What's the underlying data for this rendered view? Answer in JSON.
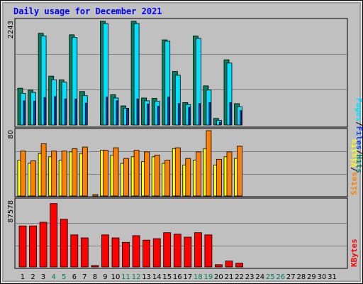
{
  "title": "Daily usage for December 2021",
  "colors": {
    "background": "#c0c0c0",
    "hits": "#00805c",
    "files": "#00e0ff",
    "pages": "#0040ff",
    "visits": "#ffff00",
    "sites": "#ff8000",
    "kbytes": "#ff0000",
    "title": "#0000ff",
    "weekend_label": "#00805c",
    "weekday_label": "#000000"
  },
  "chart_data": [
    {
      "type": "bar",
      "panel": "hits-files-pages",
      "ymax_label": "2243",
      "ylim": [
        0,
        2243
      ],
      "legend": {
        "pages": "Pages",
        "files": "Files",
        "hits": "Hits",
        "sep1": "/",
        "sep2": "/"
      },
      "series": [
        {
          "name": "Hits",
          "values": [
            790,
            750,
            1970,
            1050,
            970,
            1940,
            720,
            0,
            2230,
            650,
            410,
            2230,
            580,
            570,
            1830,
            1150,
            480,
            1910,
            840,
            140,
            1400,
            460
          ]
        },
        {
          "name": "Files",
          "values": [
            680,
            700,
            1910,
            970,
            920,
            1880,
            630,
            0,
            2180,
            580,
            360,
            2180,
            520,
            510,
            1800,
            1070,
            440,
            1860,
            750,
            100,
            1330,
            390
          ]
        },
        {
          "name": "Pages",
          "values": [
            520,
            510,
            590,
            610,
            560,
            560,
            470,
            0,
            600,
            520,
            340,
            560,
            450,
            400,
            600,
            460,
            380,
            460,
            480,
            60,
            480,
            310
          ]
        }
      ]
    },
    {
      "type": "bar",
      "panel": "visits-sites",
      "ymax_label": "80",
      "ylim": [
        0,
        80
      ],
      "legend": {
        "sites": "Sites",
        "visits": "Visits",
        "sep": "/"
      },
      "series": [
        {
          "name": "Visits",
          "values": [
            44,
            40,
            52,
            48,
            44,
            54,
            52,
            0,
            56,
            50,
            40,
            48,
            42,
            48,
            40,
            58,
            38,
            44,
            58,
            38,
            48,
            46
          ]
        },
        {
          "name": "Sites",
          "values": [
            55,
            43,
            64,
            55,
            55,
            58,
            60,
            1,
            56,
            59,
            46,
            56,
            54,
            50,
            44,
            59,
            46,
            54,
            80,
            45,
            54,
            61
          ]
        }
      ]
    },
    {
      "type": "bar",
      "panel": "kbytes",
      "ymax_label": "87578",
      "ylim": [
        0,
        87578
      ],
      "legend": {
        "kbytes": "KBytes"
      },
      "series": [
        {
          "name": "KBytes",
          "values": [
            55000,
            55000,
            60000,
            85000,
            64000,
            43000,
            39000,
            600,
            43000,
            39000,
            33000,
            42000,
            36000,
            38000,
            46000,
            44000,
            40000,
            46000,
            43000,
            3000,
            8000,
            5000
          ]
        }
      ]
    }
  ],
  "x_labels": [
    "1",
    "2",
    "3",
    "4",
    "5",
    "6",
    "7",
    "8",
    "9",
    "10",
    "11",
    "12",
    "13",
    "14",
    "15",
    "16",
    "17",
    "18",
    "19",
    "20",
    "21",
    "22",
    "23",
    "24",
    "25",
    "26",
    "27",
    "28",
    "29",
    "30",
    "31"
  ],
  "weekend_days": [
    4,
    5,
    11,
    12,
    18,
    19,
    25,
    26
  ]
}
